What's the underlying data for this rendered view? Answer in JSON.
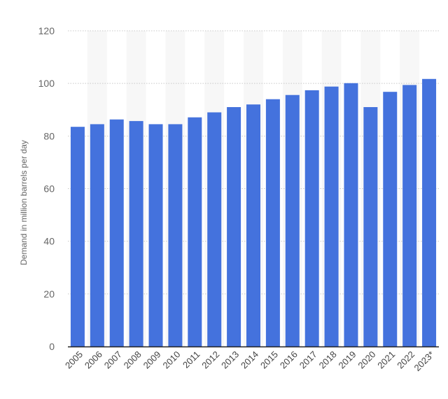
{
  "chart_data": {
    "type": "bar",
    "title": "",
    "xlabel": "",
    "ylabel": "Demand in million barrels per day",
    "ylim": [
      0,
      120
    ],
    "yticks": [
      0,
      20,
      40,
      60,
      80,
      100,
      120
    ],
    "grid": true,
    "categories": [
      "2005",
      "2006",
      "2007",
      "2008",
      "2009",
      "2010",
      "2011",
      "2012",
      "2013",
      "2014",
      "2015",
      "2016",
      "2017",
      "2018",
      "2019",
      "2020",
      "2021",
      "2022",
      "2023*"
    ],
    "values": [
      83.5,
      84.5,
      86.3,
      85.7,
      84.5,
      84.5,
      87.1,
      89.0,
      91.0,
      92.0,
      94.0,
      95.6,
      97.4,
      98.8,
      100.1,
      91.0,
      96.8,
      99.4,
      101.7
    ],
    "colors": {
      "bar": "#4472dd",
      "band": "#f7f7f7",
      "grid": "#c8c8c8",
      "axis": "#222222"
    }
  }
}
